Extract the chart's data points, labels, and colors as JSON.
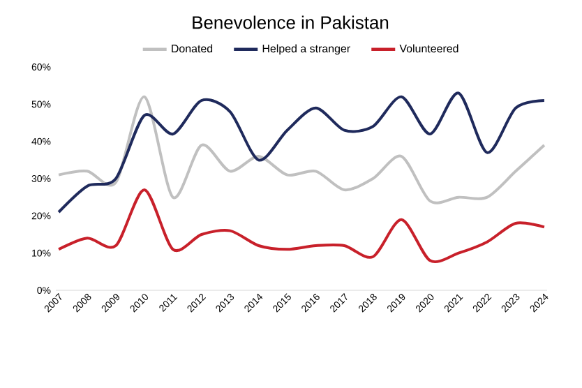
{
  "chart_data": {
    "type": "line",
    "title": "Benevolence in Pakistan",
    "categories": [
      "2007",
      "2008",
      "2009",
      "2010",
      "2011",
      "2012",
      "2013",
      "2014",
      "2015",
      "2016",
      "2017",
      "2018",
      "2019",
      "2020",
      "2021",
      "2022",
      "2023",
      "2024"
    ],
    "series": [
      {
        "name": "Donated",
        "color": "#c0c0c0",
        "values": [
          31,
          32,
          29,
          52,
          25,
          39,
          32,
          36,
          31,
          32,
          27,
          30,
          36,
          24,
          25,
          25,
          32,
          39
        ]
      },
      {
        "name": "Helped a stranger",
        "color": "#1f2a5c",
        "values": [
          21,
          28,
          30,
          47,
          42,
          51,
          48,
          35,
          43,
          49,
          43,
          44,
          52,
          42,
          53,
          37,
          49,
          51
        ]
      },
      {
        "name": "Volunteered",
        "color": "#c8202a",
        "values": [
          11,
          14,
          12,
          27,
          11,
          15,
          16,
          12,
          11,
          12,
          12,
          9,
          19,
          8,
          10,
          13,
          18,
          17
        ]
      }
    ],
    "ylim": [
      0,
      60
    ],
    "yticks": [
      {
        "value": 0,
        "label": "0%"
      },
      {
        "value": 10,
        "label": "10%"
      },
      {
        "value": 20,
        "label": "20%"
      },
      {
        "value": 30,
        "label": "30%"
      },
      {
        "value": 40,
        "label": "40%"
      },
      {
        "value": 50,
        "label": "50%"
      },
      {
        "value": 60,
        "label": "60%"
      }
    ],
    "legend": "top"
  }
}
